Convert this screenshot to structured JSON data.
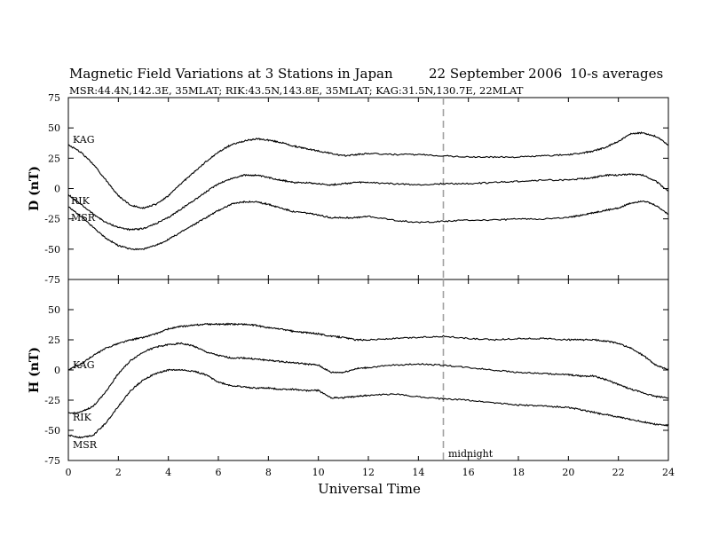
{
  "chart_data": {
    "type": "line",
    "title": "Magnetic Field Variations at 3 Stations in Japan",
    "date_text": "22 September 2006",
    "averaging": "10-s averages",
    "subtitle": "MSR:44.4N,142.3E, 35MLAT;   RIK:43.5N,143.8E, 35MLAT;   KAG:31.5N,130.7E, 22MLAT",
    "xlabel": "Universal Time",
    "xlim": [
      0,
      24
    ],
    "xticks": [
      0,
      2,
      4,
      6,
      8,
      10,
      12,
      14,
      16,
      18,
      20,
      22,
      24
    ],
    "annotation": {
      "text": "midnight",
      "x": 15
    },
    "panels": [
      {
        "id": "D",
        "ylabel": "D (nT)",
        "ylim": [
          -75,
          75
        ],
        "yticks": [
          -75,
          -50,
          -25,
          0,
          25,
          50,
          75
        ],
        "series": [
          {
            "name": "KAG",
            "x": [
              0,
              0.5,
              1,
              1.5,
              2,
              2.5,
              3,
              3.5,
              4,
              4.5,
              5,
              5.5,
              6,
              6.5,
              7,
              7.5,
              8,
              8.5,
              9,
              9.5,
              10,
              10.5,
              11,
              11.5,
              12,
              13,
              14,
              15,
              16,
              17,
              18,
              19,
              20,
              20.5,
              21,
              21.5,
              22,
              22.5,
              23,
              23.5,
              24
            ],
            "values": [
              36,
              30,
              20,
              7,
              -6,
              -14,
              -16,
              -13,
              -6,
              4,
              13,
              22,
              30,
              36,
              39,
              41,
              40,
              38,
              35,
              33,
              31,
              29,
              27,
              28,
              29,
              28,
              28,
              27,
              26,
              26,
              26,
              27,
              28,
              29,
              31,
              34,
              39,
              45,
              46,
              43,
              36
            ]
          },
          {
            "name": "RIK",
            "x": [
              0,
              0.5,
              1,
              1.5,
              2,
              2.5,
              3,
              3.5,
              4,
              4.5,
              5,
              5.5,
              6,
              6.5,
              7,
              7.5,
              8,
              8.5,
              9,
              9.5,
              10,
              10.5,
              11,
              11.5,
              12,
              13,
              14,
              15,
              16,
              17,
              18,
              19,
              20,
              20.5,
              21,
              21.5,
              22,
              22.5,
              23,
              23.5,
              24
            ],
            "values": [
              -5,
              -13,
              -21,
              -28,
              -32,
              -34,
              -33,
              -29,
              -24,
              -17,
              -10,
              -3,
              4,
              8,
              11,
              11,
              9,
              7,
              5,
              5,
              4,
              3,
              4,
              5,
              5,
              4,
              3,
              4,
              4,
              5,
              6,
              7,
              7,
              8,
              9,
              11,
              11,
              12,
              11,
              6,
              -2
            ]
          },
          {
            "name": "MSR",
            "x": [
              0,
              0.5,
              1,
              1.5,
              2,
              2.5,
              3,
              3.5,
              4,
              4.5,
              5,
              5.5,
              6,
              6.5,
              7,
              7.5,
              8,
              8.5,
              9,
              9.5,
              10,
              10.5,
              11,
              11.5,
              12,
              13,
              14,
              15,
              16,
              17,
              18,
              19,
              20,
              20.5,
              21,
              21.5,
              22,
              22.5,
              23,
              23.5,
              24
            ],
            "values": [
              -15,
              -23,
              -32,
              -41,
              -47,
              -50,
              -50,
              -47,
              -42,
              -36,
              -30,
              -24,
              -18,
              -13,
              -11,
              -11,
              -13,
              -16,
              -19,
              -20,
              -22,
              -24,
              -24,
              -24,
              -23,
              -26,
              -28,
              -27,
              -26,
              -26,
              -25,
              -25,
              -24,
              -22,
              -20,
              -18,
              -16,
              -12,
              -10,
              -14,
              -21
            ]
          }
        ]
      },
      {
        "id": "H",
        "ylabel": "H (nT)",
        "ylim": [
          -75,
          75
        ],
        "yticks": [
          -75,
          -50,
          -25,
          0,
          25,
          50
        ],
        "series": [
          {
            "name": "KAG",
            "x": [
              0,
              0.5,
              1,
              1.5,
              2,
              2.5,
              3,
              3.5,
              4,
              4.5,
              5,
              5.5,
              6,
              6.5,
              7,
              7.5,
              8,
              8.5,
              9,
              9.5,
              10,
              10.5,
              11,
              11.5,
              12,
              13,
              14,
              15,
              16,
              17,
              18,
              19,
              20,
              20.5,
              21,
              21.5,
              22,
              22.5,
              23,
              23.5,
              24
            ],
            "values": [
              0,
              5,
              12,
              18,
              22,
              25,
              27,
              30,
              34,
              36,
              37,
              38,
              38,
              38,
              38,
              37,
              35,
              34,
              32,
              31,
              30,
              28,
              27,
              25,
              25,
              26,
              27,
              28,
              26,
              25,
              26,
              26,
              25,
              25,
              25,
              24,
              22,
              18,
              12,
              4,
              0
            ]
          },
          {
            "name": "RIK",
            "x": [
              0,
              0.5,
              1,
              1.5,
              2,
              2.5,
              3,
              3.5,
              4,
              4.5,
              5,
              5.5,
              6,
              6.5,
              7,
              7.5,
              8,
              8.5,
              9,
              9.5,
              10,
              10.5,
              11,
              11.5,
              12,
              13,
              14,
              15,
              16,
              17,
              18,
              19,
              20,
              20.5,
              21,
              21.5,
              22,
              22.5,
              23,
              23.5,
              24
            ],
            "values": [
              -36,
              -35,
              -30,
              -18,
              -3,
              8,
              15,
              19,
              21,
              22,
              20,
              15,
              12,
              10,
              10,
              9,
              8,
              7,
              6,
              5,
              4,
              -2,
              -2,
              1,
              2,
              4,
              5,
              4,
              2,
              0,
              -2,
              -3,
              -4,
              -5,
              -5,
              -8,
              -12,
              -16,
              -19,
              -22,
              -23
            ]
          },
          {
            "name": "MSR",
            "x": [
              0,
              0.5,
              1,
              1.5,
              2,
              2.5,
              3,
              3.5,
              4,
              4.5,
              5,
              5.5,
              6,
              6.5,
              7,
              7.5,
              8,
              8.5,
              9,
              9.5,
              10,
              10.5,
              11,
              11.5,
              12,
              13,
              14,
              15,
              16,
              17,
              18,
              19,
              20,
              20.5,
              21,
              21.5,
              22,
              22.5,
              23,
              23.5,
              24
            ],
            "values": [
              -54,
              -56,
              -54,
              -44,
              -30,
              -17,
              -8,
              -3,
              0,
              0,
              -1,
              -4,
              -10,
              -13,
              -14,
              -15,
              -15,
              -16,
              -16,
              -17,
              -17,
              -23,
              -23,
              -22,
              -21,
              -20,
              -22,
              -24,
              -25,
              -27,
              -29,
              -30,
              -31,
              -33,
              -35,
              -37,
              -39,
              -41,
              -43,
              -45,
              -46
            ]
          }
        ]
      }
    ]
  }
}
